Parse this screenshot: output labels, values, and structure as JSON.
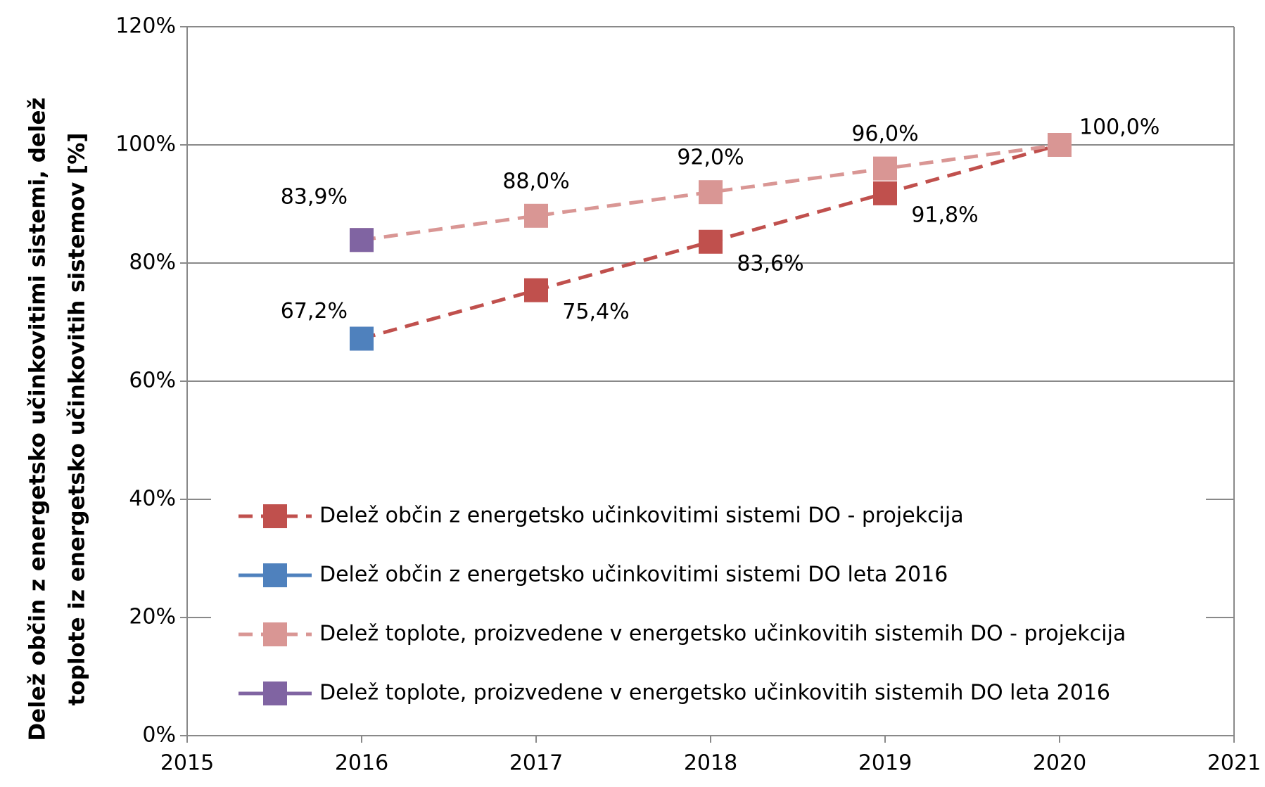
{
  "chart_data": {
    "type": "line",
    "ylabel": [
      "Delež občin z energetsko učinkovitimi sistemi, delež",
      "toplote iz energetsko učinkovitih  sistemov [%]"
    ],
    "xlim": [
      2015,
      2021
    ],
    "xticks": [
      2015,
      2016,
      2017,
      2018,
      2019,
      2020,
      2021
    ],
    "ylim": [
      0,
      120
    ],
    "yticks": [
      {
        "value": 0,
        "label": "0%"
      },
      {
        "value": 20,
        "label": "20%"
      },
      {
        "value": 40,
        "label": "40%"
      },
      {
        "value": 60,
        "label": "60%"
      },
      {
        "value": 80,
        "label": "80%"
      },
      {
        "value": 100,
        "label": "100%"
      },
      {
        "value": 120,
        "label": "120%"
      }
    ],
    "grid": true,
    "legend": "lower left",
    "series": [
      {
        "name": "Delež občin z energetsko učinkovitimi sistemi DO - projekcija",
        "color": "#c0504d",
        "dashed": true,
        "x": [
          2016,
          2017,
          2018,
          2019,
          2020
        ],
        "values": [
          67.2,
          75.4,
          83.6,
          91.8,
          100.0
        ],
        "value_labels": [
          null,
          "75,4%",
          "83,6%",
          "91,8%",
          null
        ]
      },
      {
        "name": "Delež občin z energetsko učinkovitimi sistemi DO leta 2016",
        "color": "#4f81bd",
        "dashed": false,
        "x": [
          2016
        ],
        "values": [
          67.2
        ],
        "value_labels": [
          "67,2%"
        ]
      },
      {
        "name": "Delež toplote, proizvedene v energetsko učinkovitih sistemih DO - projekcija",
        "color": "#d99694",
        "dashed": true,
        "x": [
          2016,
          2017,
          2018,
          2019,
          2020
        ],
        "values": [
          83.9,
          88.0,
          92.0,
          96.0,
          100.0
        ],
        "value_labels": [
          null,
          "88,0%",
          "92,0%",
          "96,0%",
          "100,0%"
        ]
      },
      {
        "name": "Delež toplote, proizvedene v energetsko učinkovitih sistemih DO leta 2016",
        "color": "#8064a2",
        "dashed": false,
        "x": [
          2016
        ],
        "values": [
          83.9
        ],
        "value_labels": [
          "83,9%"
        ]
      }
    ]
  }
}
